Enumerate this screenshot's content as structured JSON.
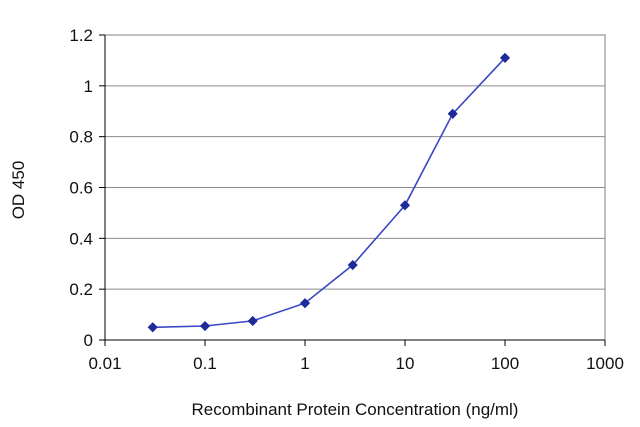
{
  "chart_data": {
    "type": "line",
    "title": "",
    "xlabel": "Recombinant Protein Concentration (ng/ml)",
    "ylabel": "OD 450",
    "x_scale": "log",
    "xlim": [
      0.01,
      1000
    ],
    "ylim": [
      0,
      1.2
    ],
    "x_ticks": [
      0.01,
      0.1,
      1,
      10,
      100,
      1000
    ],
    "x_tick_labels": [
      "0.01",
      "0.1",
      "1",
      "10",
      "100",
      "1000"
    ],
    "y_ticks": [
      0,
      0.2,
      0.4,
      0.6,
      0.8,
      1,
      1.2
    ],
    "y_tick_labels": [
      "0",
      "0.2",
      "0.4",
      "0.6",
      "0.8",
      "1",
      "1.2"
    ],
    "grid": "horizontal",
    "legend": "none",
    "series": [
      {
        "x": [
          0.03,
          0.1,
          0.3,
          1,
          3,
          10,
          30,
          100
        ],
        "y": [
          0.05,
          0.055,
          0.075,
          0.145,
          0.295,
          0.53,
          0.89,
          1.11
        ]
      }
    ],
    "colors": {
      "line": "#3a46c4",
      "marker": "#1d2a9a",
      "grid": "#8c8c8c",
      "frame": "#808080",
      "background": "#ffffff"
    }
  }
}
